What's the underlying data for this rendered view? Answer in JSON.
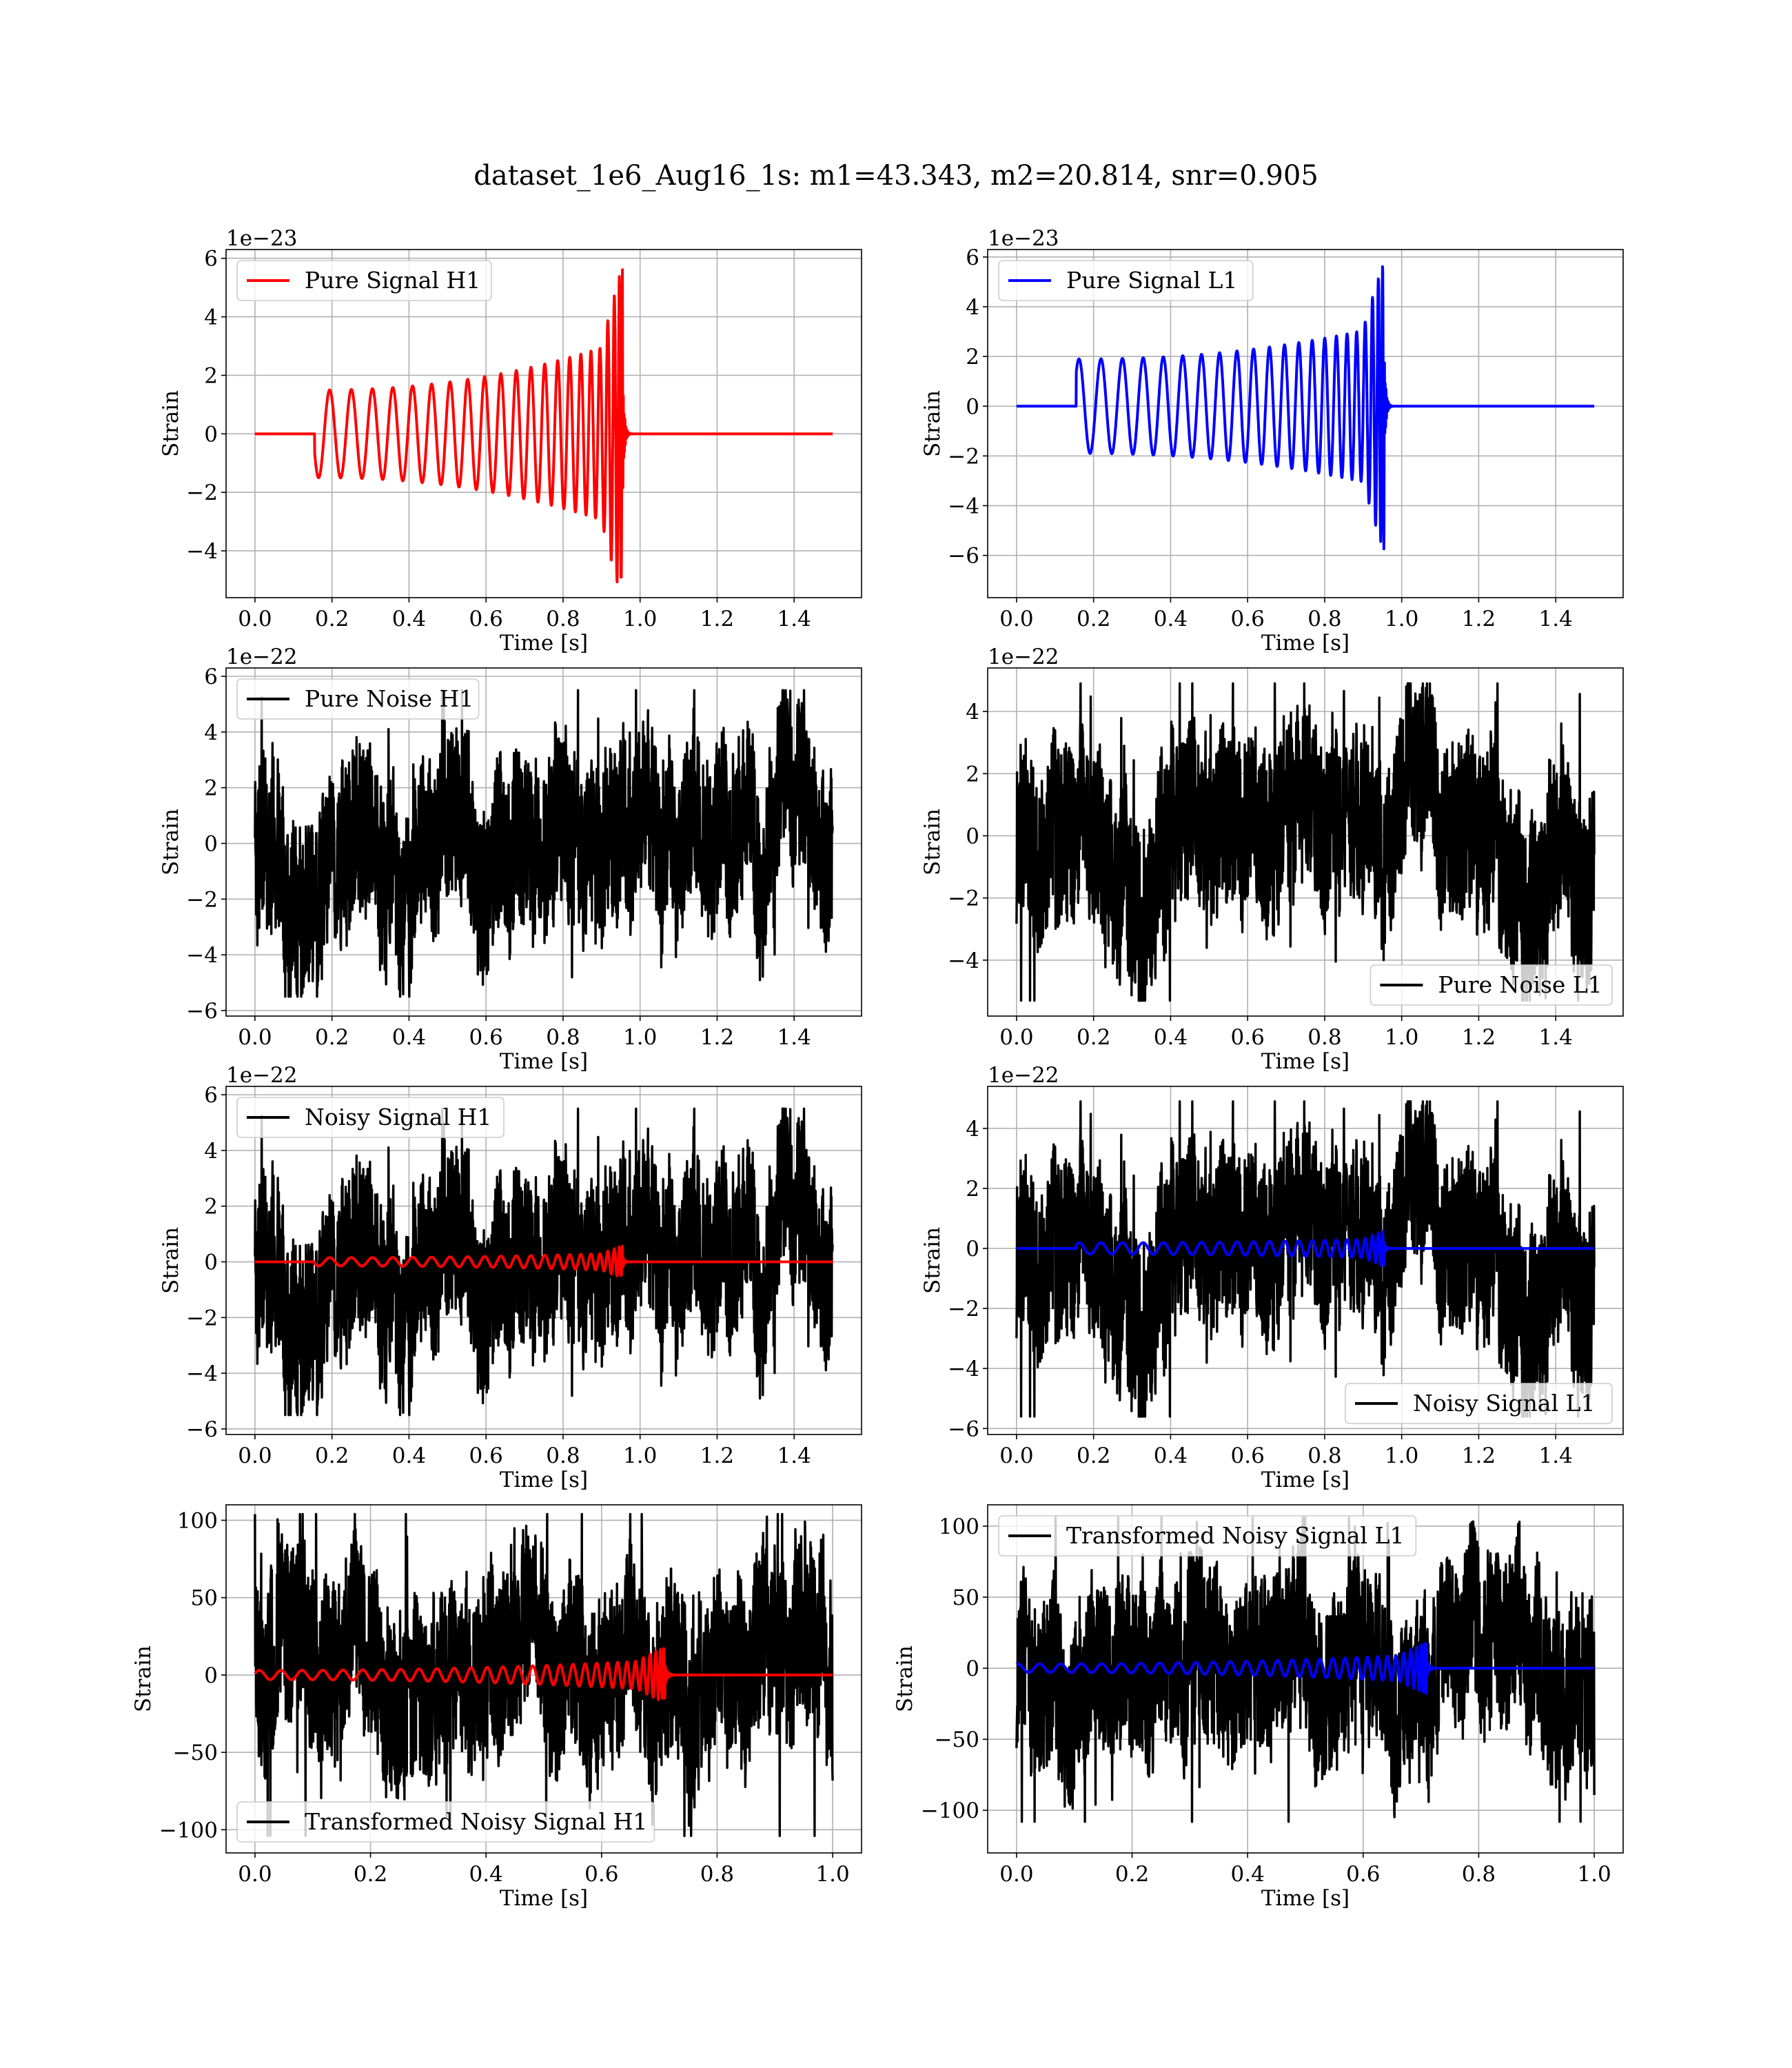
{
  "figure": {
    "title": "dataset_1e6_Aug16_1s: m1=43.343, m2=20.814, snr=0.905"
  },
  "chart_data": [
    {
      "id": "pure-signal-h1",
      "type": "line",
      "xlabel": "Time [s]",
      "ylabel": "Strain",
      "offset_text": "1e−23",
      "xlim": [
        -0.075,
        1.575
      ],
      "ylim": [
        -5.6,
        6.3
      ],
      "xticks": [
        0.0,
        0.2,
        0.4,
        0.6,
        0.8,
        1.0,
        1.2,
        1.4
      ],
      "xtick_labels": [
        "0.0",
        "0.2",
        "0.4",
        "0.6",
        "0.8",
        "1.0",
        "1.2",
        "1.4"
      ],
      "yticks": [
        -4,
        -2,
        0,
        2,
        4,
        6
      ],
      "ytick_labels": [
        "−4",
        "−2",
        "0",
        "2",
        "4",
        "6"
      ],
      "grid": true,
      "legend_position": "upper-left",
      "series": [
        {
          "name": "Pure Signal H1",
          "color": "#ff0000",
          "kind": "chirp",
          "t_start": 0.0,
          "t_end": 1.5,
          "onset": 0.155,
          "merger": 0.955,
          "amp_start": 1.5,
          "amp_peak": 5.8,
          "amp_min": -4.9,
          "cycles": 22,
          "phase": 3.6
        }
      ]
    },
    {
      "id": "pure-signal-l1",
      "type": "line",
      "xlabel": "Time [s]",
      "ylabel": "Strain",
      "offset_text": "1e−23",
      "xlim": [
        -0.075,
        1.575
      ],
      "ylim": [
        -7.7,
        6.3
      ],
      "xticks": [
        0.0,
        0.2,
        0.4,
        0.6,
        0.8,
        1.0,
        1.2,
        1.4
      ],
      "xtick_labels": [
        "0.0",
        "0.2",
        "0.4",
        "0.6",
        "0.8",
        "1.0",
        "1.2",
        "1.4"
      ],
      "yticks": [
        -6,
        -4,
        -2,
        0,
        2,
        4,
        6
      ],
      "ytick_labels": [
        "−6",
        "−4",
        "−2",
        "0",
        "2",
        "4",
        "6"
      ],
      "grid": true,
      "legend_position": "upper-left",
      "series": [
        {
          "name": "Pure Signal L1",
          "color": "#0000ff",
          "kind": "chirp",
          "t_start": 0.0,
          "t_end": 1.5,
          "onset": 0.155,
          "merger": 0.955,
          "amp_start": 1.9,
          "amp_peak": 5.9,
          "amp_min": -7.1,
          "cycles": 22,
          "phase": 0.8
        }
      ]
    },
    {
      "id": "pure-noise-h1",
      "type": "line",
      "xlabel": "Time [s]",
      "ylabel": "Strain",
      "offset_text": "1e−22",
      "xlim": [
        -0.075,
        1.575
      ],
      "ylim": [
        -6.2,
        6.3
      ],
      "xticks": [
        0.0,
        0.2,
        0.4,
        0.6,
        0.8,
        1.0,
        1.2,
        1.4
      ],
      "xtick_labels": [
        "0.0",
        "0.2",
        "0.4",
        "0.6",
        "0.8",
        "1.0",
        "1.2",
        "1.4"
      ],
      "yticks": [
        -6,
        -4,
        -2,
        0,
        2,
        4,
        6
      ],
      "ytick_labels": [
        "−6",
        "−4",
        "−2",
        "0",
        "2",
        "4",
        "6"
      ],
      "grid": true,
      "legend_position": "upper-left",
      "series": [
        {
          "name": "Pure Noise H1",
          "color": "#000000",
          "kind": "noise",
          "t_start": 0.0,
          "t_end": 1.5,
          "amp_max": 5.5,
          "amp_min": -5.5,
          "seed": 11
        }
      ]
    },
    {
      "id": "pure-noise-l1",
      "type": "line",
      "xlabel": "Time [s]",
      "ylabel": "Strain",
      "offset_text": "1e−22",
      "xlim": [
        -0.075,
        1.575
      ],
      "ylim": [
        -5.8,
        5.4
      ],
      "xticks": [
        0.0,
        0.2,
        0.4,
        0.6,
        0.8,
        1.0,
        1.2,
        1.4
      ],
      "xtick_labels": [
        "0.0",
        "0.2",
        "0.4",
        "0.6",
        "0.8",
        "1.0",
        "1.2",
        "1.4"
      ],
      "yticks": [
        -4,
        -2,
        0,
        2,
        4
      ],
      "ytick_labels": [
        "−4",
        "−2",
        "0",
        "2",
        "4"
      ],
      "grid": true,
      "legend_position": "lower-right",
      "series": [
        {
          "name": "Pure Noise L1",
          "color": "#000000",
          "kind": "noise",
          "t_start": 0.0,
          "t_end": 1.5,
          "amp_max": 4.9,
          "amp_min": -5.3,
          "seed": 23
        }
      ]
    },
    {
      "id": "noisy-signal-h1",
      "type": "line",
      "xlabel": "Time [s]",
      "ylabel": "Strain",
      "offset_text": "1e−22",
      "xlim": [
        -0.075,
        1.575
      ],
      "ylim": [
        -6.2,
        6.3
      ],
      "xticks": [
        0.0,
        0.2,
        0.4,
        0.6,
        0.8,
        1.0,
        1.2,
        1.4
      ],
      "xtick_labels": [
        "0.0",
        "0.2",
        "0.4",
        "0.6",
        "0.8",
        "1.0",
        "1.2",
        "1.4"
      ],
      "yticks": [
        -6,
        -4,
        -2,
        0,
        2,
        4,
        6
      ],
      "ytick_labels": [
        "−6",
        "−4",
        "−2",
        "0",
        "2",
        "4",
        "6"
      ],
      "grid": true,
      "legend_position": "upper-left",
      "series": [
        {
          "name": "Noisy Signal H1",
          "color": "#000000",
          "kind": "noise",
          "t_start": 0.0,
          "t_end": 1.5,
          "amp_max": 5.5,
          "amp_min": -5.5,
          "seed": 11
        },
        {
          "color": "#ff0000",
          "kind": "chirp",
          "t_start": 0.0,
          "t_end": 1.5,
          "onset": 0.155,
          "merger": 0.955,
          "amp_start": 0.15,
          "amp_peak": 0.58,
          "amp_min": -0.49,
          "cycles": 22,
          "phase": 3.6
        }
      ]
    },
    {
      "id": "noisy-signal-l1",
      "type": "line",
      "xlabel": "Time [s]",
      "ylabel": "Strain",
      "offset_text": "1e−22",
      "xlim": [
        -0.075,
        1.575
      ],
      "ylim": [
        -6.2,
        5.4
      ],
      "xticks": [
        0.0,
        0.2,
        0.4,
        0.6,
        0.8,
        1.0,
        1.2,
        1.4
      ],
      "xtick_labels": [
        "0.0",
        "0.2",
        "0.4",
        "0.6",
        "0.8",
        "1.0",
        "1.2",
        "1.4"
      ],
      "yticks": [
        -6,
        -4,
        -2,
        0,
        2,
        4
      ],
      "ytick_labels": [
        "−6",
        "−4",
        "−2",
        "0",
        "2",
        "4"
      ],
      "grid": true,
      "legend_position": "lower-right",
      "series": [
        {
          "name": "Noisy Signal L1",
          "color": "#000000",
          "kind": "noise",
          "t_start": 0.0,
          "t_end": 1.5,
          "amp_max": 4.9,
          "amp_min": -5.6,
          "seed": 23
        },
        {
          "color": "#0000ff",
          "kind": "chirp",
          "t_start": 0.0,
          "t_end": 1.5,
          "onset": 0.155,
          "merger": 0.955,
          "amp_start": 0.19,
          "amp_peak": 0.59,
          "amp_min": -0.71,
          "cycles": 22,
          "phase": 0.8
        }
      ]
    },
    {
      "id": "transformed-noisy-signal-h1",
      "type": "line",
      "xlabel": "Time [s]",
      "ylabel": "Strain",
      "offset_text": "",
      "xlim": [
        -0.05,
        1.05
      ],
      "ylim": [
        -115,
        110
      ],
      "xticks": [
        0.0,
        0.2,
        0.4,
        0.6,
        0.8,
        1.0
      ],
      "xtick_labels": [
        "0.0",
        "0.2",
        "0.4",
        "0.6",
        "0.8",
        "1.0"
      ],
      "yticks": [
        -100,
        -50,
        0,
        50,
        100
      ],
      "ytick_labels": [
        "−100",
        "−50",
        "0",
        "50",
        "100"
      ],
      "grid": true,
      "legend_position": "lower-left",
      "series": [
        {
          "name": "Transformed Noisy Signal H1",
          "color": "#000000",
          "kind": "noise",
          "t_start": 0.0,
          "t_end": 1.0,
          "amp_max": 104,
          "amp_min": -104,
          "seed": 37
        },
        {
          "color": "#ff0000",
          "kind": "chirp",
          "t_start": 0.0,
          "t_end": 1.0,
          "onset": 0.0,
          "merger": 0.71,
          "amp_start": 3,
          "amp_peak": 18,
          "amp_min": -15,
          "cycles": 30,
          "phase": 0.3
        }
      ]
    },
    {
      "id": "transformed-noisy-signal-l1",
      "type": "line",
      "xlabel": "Time [s]",
      "ylabel": "Strain",
      "offset_text": "",
      "xlim": [
        -0.05,
        1.05
      ],
      "ylim": [
        -130,
        115
      ],
      "xticks": [
        0.0,
        0.2,
        0.4,
        0.6,
        0.8,
        1.0
      ],
      "xtick_labels": [
        "0.0",
        "0.2",
        "0.4",
        "0.6",
        "0.8",
        "1.0"
      ],
      "yticks": [
        -100,
        -50,
        0,
        50,
        100
      ],
      "ytick_labels": [
        "−100",
        "−50",
        "0",
        "50",
        "100"
      ],
      "grid": true,
      "legend_position": "upper-left",
      "series": [
        {
          "name": "Transformed Noisy Signal L1",
          "color": "#000000",
          "kind": "noise",
          "t_start": 0.0,
          "t_end": 1.0,
          "amp_max": 106,
          "amp_min": -108,
          "seed": 51
        },
        {
          "color": "#0000ff",
          "kind": "chirp",
          "t_start": 0.0,
          "t_end": 1.0,
          "onset": 0.0,
          "merger": 0.71,
          "amp_start": 3,
          "amp_peak": 18,
          "amp_min": -20,
          "cycles": 30,
          "phase": 1.2
        }
      ]
    }
  ]
}
